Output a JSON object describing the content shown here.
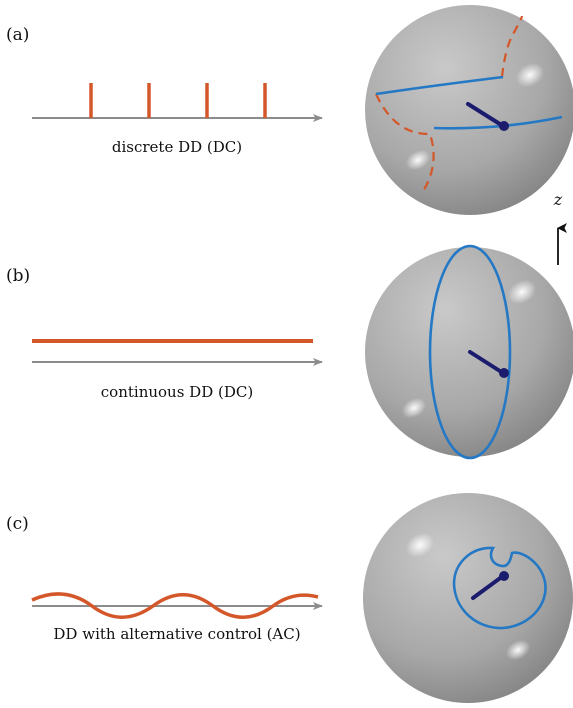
{
  "panels": [
    {
      "id": "a",
      "label": "(a)",
      "caption": "discrete DD (DC)"
    },
    {
      "id": "b",
      "label": "(b)",
      "caption": "continuous DD (DC)"
    },
    {
      "id": "c",
      "label": "(c)",
      "caption": "DD with alternative control (AC)"
    }
  ],
  "axis": {
    "label": "z"
  },
  "colors": {
    "control": "#d4572a",
    "trajectory": "#2478c4",
    "vector": "#1c1c6e",
    "time_axis": "#8c8c8c",
    "sphere": "#a5a5a5"
  }
}
